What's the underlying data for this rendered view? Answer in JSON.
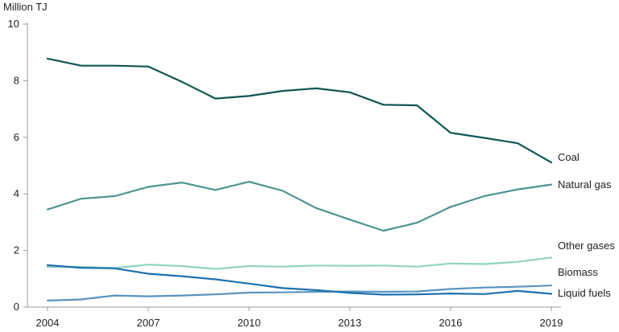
{
  "chart_data": {
    "type": "line",
    "unit_label": "Million TJ",
    "x": [
      2004,
      2005,
      2006,
      2007,
      2008,
      2009,
      2010,
      2011,
      2012,
      2013,
      2014,
      2015,
      2016,
      2017,
      2018,
      2019
    ],
    "x_ticks": [
      "2004",
      "2007",
      "2010",
      "2013",
      "2016",
      "2019"
    ],
    "ylim": [
      0,
      10
    ],
    "y_ticks": [
      "0",
      "2",
      "4",
      "6",
      "8",
      "10"
    ],
    "series": [
      {
        "name": "Coal",
        "color": "#0f5551",
        "values": [
          8.78,
          8.53,
          8.53,
          8.5,
          7.96,
          7.37,
          7.46,
          7.64,
          7.73,
          7.59,
          7.15,
          7.13,
          6.16,
          5.98,
          5.79,
          5.11
        ]
      },
      {
        "name": "Natural gas",
        "color": "#4e9590",
        "values": [
          3.45,
          3.83,
          3.92,
          4.25,
          4.4,
          4.14,
          4.43,
          4.11,
          3.5,
          3.09,
          2.7,
          2.98,
          3.54,
          3.92,
          4.16,
          4.33
        ]
      },
      {
        "name": "Other gases",
        "color": "#8fd3c3",
        "values": [
          1.42,
          1.42,
          1.38,
          1.5,
          1.45,
          1.35,
          1.45,
          1.43,
          1.47,
          1.46,
          1.47,
          1.43,
          1.54,
          1.52,
          1.6,
          1.75
        ]
      },
      {
        "name": "Biomass",
        "color": "#5a93bd",
        "values": [
          0.23,
          0.27,
          0.41,
          0.38,
          0.41,
          0.45,
          0.51,
          0.52,
          0.54,
          0.55,
          0.54,
          0.55,
          0.64,
          0.69,
          0.72,
          0.76
        ]
      },
      {
        "name": "Liquid fuels",
        "color": "#1f71ae",
        "values": [
          1.48,
          1.39,
          1.37,
          1.18,
          1.09,
          0.98,
          0.83,
          0.67,
          0.6,
          0.5,
          0.44,
          0.45,
          0.48,
          0.46,
          0.57,
          0.47
        ]
      }
    ]
  }
}
